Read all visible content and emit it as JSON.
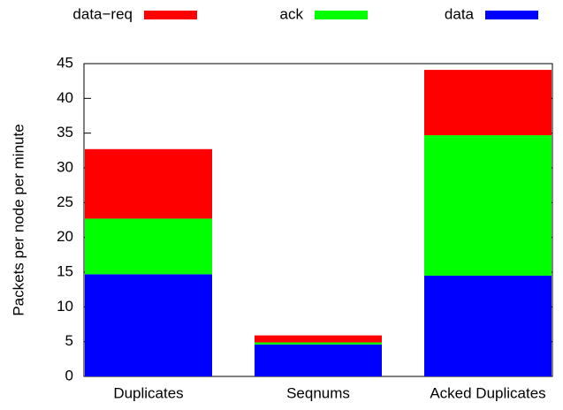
{
  "chart_data": {
    "type": "stacked_bar",
    "y_label": "Packets per node per minute",
    "categories": [
      "Duplicates",
      "Seqnums",
      "Acked Duplicates"
    ],
    "series": [
      {
        "name": "data",
        "color": "#0000ff",
        "values": [
          14.7,
          4.6,
          14.5
        ]
      },
      {
        "name": "ack",
        "color": "#00ff00",
        "values": [
          8.0,
          0.3,
          20.2
        ]
      },
      {
        "name": "data−req",
        "color": "#ff0000",
        "values": [
          10.0,
          1.0,
          9.4
        ]
      }
    ],
    "ylim": [
      0,
      45
    ],
    "yticks": [
      0,
      5,
      10,
      15,
      20,
      25,
      30,
      35,
      40,
      45
    ],
    "legend": "top"
  }
}
